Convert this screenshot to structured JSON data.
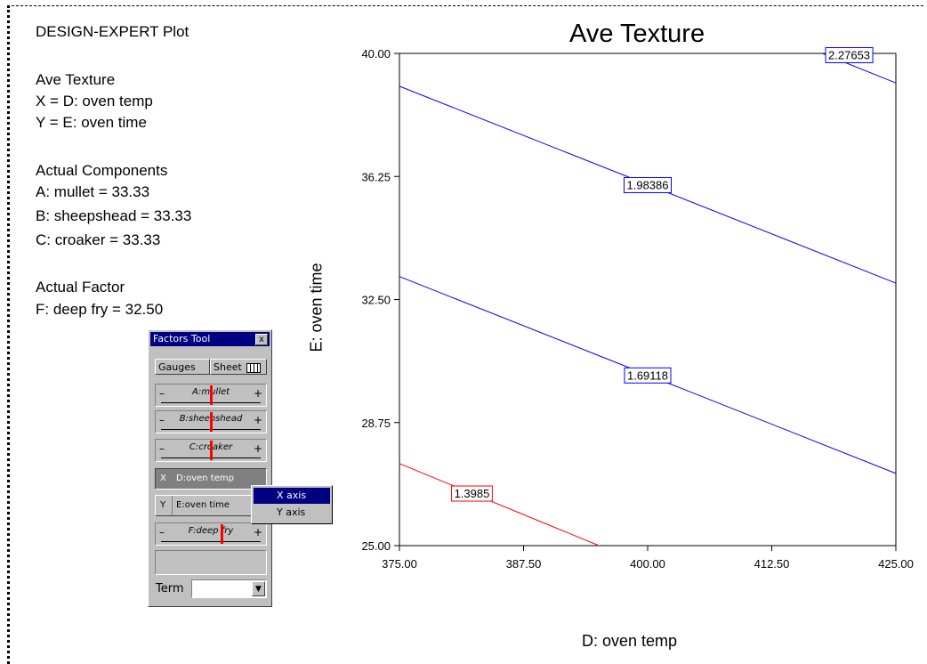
{
  "info": {
    "program": "DESIGN-EXPERT Plot",
    "response": "Ave Texture",
    "x_def": "X = D: oven temp",
    "y_def": "Y = E: oven time",
    "components_title": "Actual Components",
    "components": [
      "A: mullet = 33.33",
      "B: sheepshead = 33.33",
      "C: croaker = 33.33"
    ],
    "factor_title": "Actual Factor",
    "factor": "F: deep fry = 32.50"
  },
  "chart_data": {
    "type": "contour",
    "title": "Ave Texture",
    "xlabel": "D: oven temp",
    "ylabel": "E: oven time",
    "xlim": [
      375.0,
      425.0
    ],
    "ylim": [
      25.0,
      40.0
    ],
    "xticks": [
      "375.00",
      "387.50",
      "400.00",
      "412.50",
      "425.00"
    ],
    "yticks": [
      "25.00",
      "28.75",
      "32.50",
      "36.25",
      "40.00"
    ],
    "contours": [
      {
        "level": "1.3985",
        "color": "#ff0000",
        "points": [
          [
            375.0,
            27.5
          ],
          [
            395.1,
            25.0
          ]
        ],
        "label_at": [
          382.3,
          26.6
        ]
      },
      {
        "level": "1.69118",
        "color": "#0000ff",
        "points": [
          [
            375.0,
            33.2
          ],
          [
            425.0,
            27.2
          ]
        ],
        "label_at": [
          400.0,
          30.2
        ]
      },
      {
        "level": "1.98386",
        "color": "#0000ff",
        "points": [
          [
            375.0,
            39.0
          ],
          [
            425.0,
            33.0
          ]
        ],
        "label_at": [
          400.0,
          36.0
        ]
      },
      {
        "level": "2.27653",
        "color": "#0000ff",
        "points": [
          [
            417.6,
            40.0
          ],
          [
            425.0,
            39.1
          ]
        ],
        "label_at": [
          420.3,
          39.96
        ]
      }
    ]
  },
  "factors_tool": {
    "title": "Factors Tool",
    "close": "x",
    "gauges_btn": "Gauges",
    "sheet_btn": "Sheet",
    "gauges": [
      {
        "label": "A:mullet",
        "level": 0.5
      },
      {
        "label": "B:sheepshead",
        "level": 0.5
      },
      {
        "label": "C:croaker",
        "level": 0.5
      }
    ],
    "x_letter": "X",
    "x_factor": "D:oven temp",
    "y_letter": "Y",
    "y_factor": "E:oven time",
    "fry_gauge": {
      "label": "F:deep fry",
      "level": 0.62
    },
    "term_label": "Term",
    "term_value": ""
  },
  "context_menu": {
    "items": [
      "X axis",
      "Y axis"
    ],
    "selected": "X axis"
  }
}
